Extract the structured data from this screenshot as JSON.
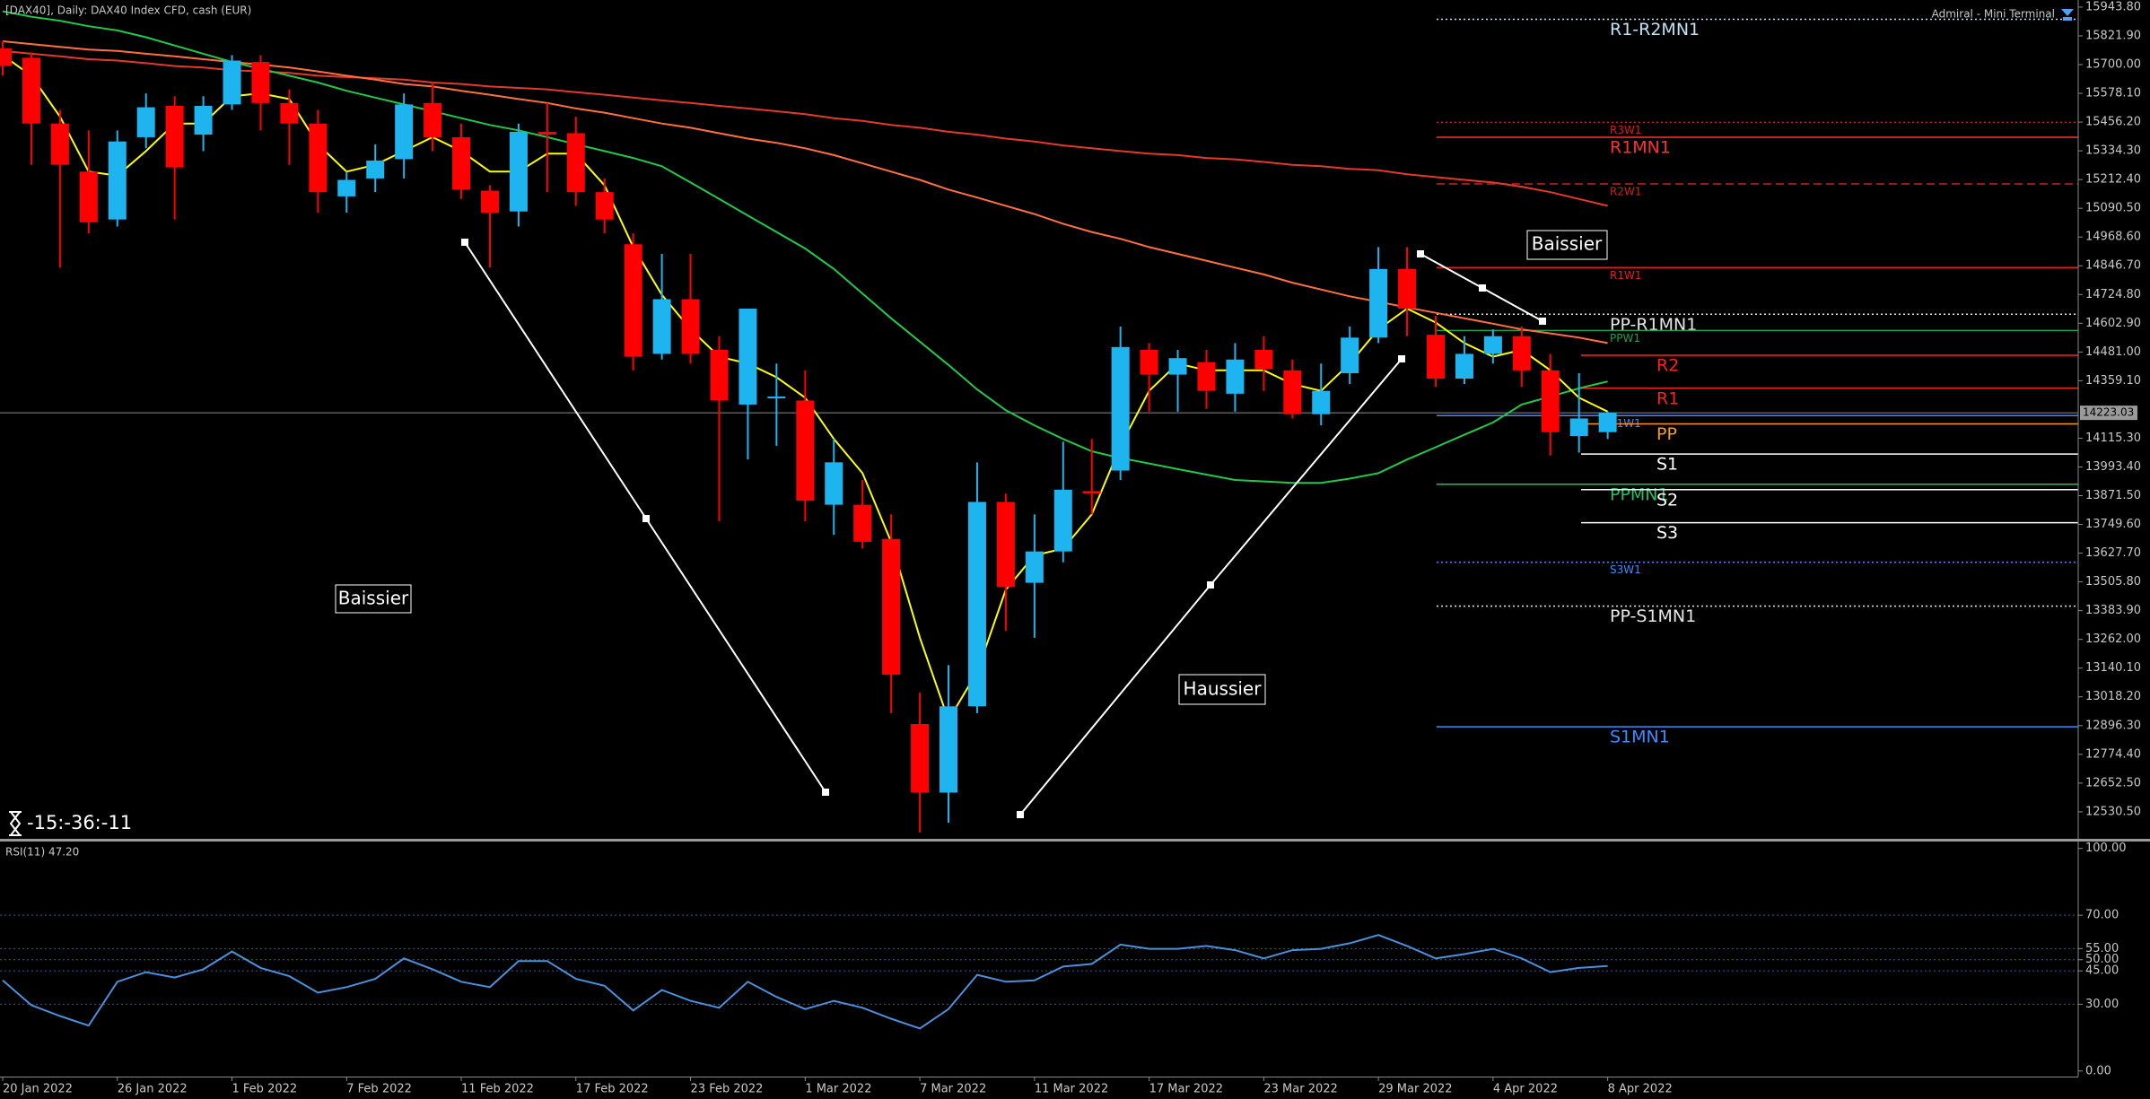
{
  "chart_data": [
    {
      "type": "candlestick",
      "title": "[DAX40], Daily:  DAX40 Index CFD, cash (EUR)",
      "categories": [
        "20 Jan 2022",
        null,
        null,
        null,
        "26 Jan 2022",
        null,
        null,
        null,
        "1 Feb 2022",
        null,
        null,
        null,
        "7 Feb 2022",
        null,
        null,
        null,
        "11 Feb 2022",
        null,
        null,
        null,
        "17 Feb 2022",
        null,
        null,
        null,
        "23 Feb 2022",
        null,
        null,
        null,
        "1 Mar 2022",
        null,
        null,
        null,
        "7 Mar 2022",
        null,
        null,
        null,
        "11 Mar 2022",
        null,
        null,
        null,
        "17 Mar 2022",
        null,
        null,
        null,
        "23 Mar 2022",
        null,
        null,
        null,
        "29 Mar 2022",
        null,
        null,
        null,
        "4 Apr 2022",
        null,
        null,
        null,
        "8 Apr 2022"
      ],
      "open": [
        15769,
        15729,
        15450,
        15246,
        15043,
        15392,
        15525,
        15403,
        15531,
        15711,
        15537,
        15450,
        15141,
        15217,
        15299,
        15537,
        15392,
        15165,
        15077,
        15415,
        15409,
        15159,
        14938,
        14473,
        14705,
        14490,
        14258,
        14287,
        14275,
        13833,
        13833,
        13688,
        12903,
        12612,
        12978,
        13845,
        13502,
        13635,
        13891,
        13978,
        14490,
        14385,
        14438,
        14304,
        14490,
        14403,
        14217,
        14391,
        14542,
        14833,
        14554,
        14368,
        14473,
        14548,
        14403,
        14124,
        14141
      ],
      "high": [
        15799,
        15752,
        15508,
        15421,
        15421,
        15578,
        15566,
        15566,
        15740,
        15740,
        15595,
        15508,
        15246,
        15362,
        15578,
        15624,
        15450,
        15188,
        15450,
        15537,
        15479,
        15217,
        14984,
        14897,
        14897,
        14548,
        14665,
        14432,
        14403,
        14112,
        13938,
        13792,
        13036,
        13153,
        14013,
        13880,
        13792,
        14101,
        14112,
        14589,
        14519,
        14490,
        14490,
        14519,
        14548,
        14449,
        14432,
        14589,
        14926,
        14926,
        14635,
        14548,
        14577,
        14589,
        14473,
        14391,
        14228
      ],
      "low": [
        15653,
        15275,
        14839,
        14984,
        15013,
        15345,
        15043,
        15333,
        15508,
        15421,
        15275,
        15072,
        15072,
        15159,
        15217,
        15333,
        15130,
        14839,
        15013,
        15159,
        15101,
        14984,
        14403,
        14449,
        14432,
        13763,
        14025,
        14083,
        13763,
        13705,
        13647,
        12949,
        12443,
        12484,
        12949,
        13298,
        13269,
        13589,
        13792,
        13938,
        14228,
        14228,
        14240,
        14228,
        14316,
        14199,
        14170,
        14345,
        14519,
        14548,
        14333,
        14345,
        14432,
        14333,
        14042,
        14054,
        14112
      ],
      "close": [
        15694,
        15450,
        15275,
        15031,
        15374,
        15519,
        15264,
        15525,
        15717,
        15537,
        15450,
        15159,
        15211,
        15293,
        15531,
        15392,
        15170,
        15072,
        15415,
        15403,
        15159,
        15043,
        14461,
        14705,
        14473,
        14275,
        14665,
        14292,
        13850,
        14013,
        13676,
        13112,
        12612,
        12978,
        13845,
        13484,
        13635,
        13897,
        13880,
        14502,
        14385,
        14455,
        14316,
        14449,
        14409,
        14217,
        14316,
        14542,
        14833,
        14665,
        14368,
        14473,
        14548,
        14403,
        14141,
        14199,
        14223
      ],
      "up_color": "#1eb4f0",
      "down_color": "#ff0000",
      "series": [
        {
          "color": "#e23a2a",
          "values": [
            15758,
            15746,
            15735,
            15723,
            15717,
            15706,
            15694,
            15688,
            15676,
            15671,
            15665,
            15653,
            15647,
            15642,
            15636,
            15624,
            15618,
            15607,
            15601,
            15595,
            15583,
            15572,
            15560,
            15548,
            15537,
            15525,
            15514,
            15502,
            15490,
            15473,
            15461,
            15444,
            15432,
            15415,
            15403,
            15386,
            15374,
            15357,
            15345,
            15333,
            15322,
            15316,
            15304,
            15298,
            15287,
            15275,
            15269,
            15258,
            15252,
            15235,
            15223,
            15211,
            15200,
            15182,
            15159,
            15130,
            15101
          ]
        },
        {
          "color": "#ff7040",
          "values": [
            15799,
            15787,
            15775,
            15764,
            15758,
            15746,
            15735,
            15723,
            15711,
            15700,
            15688,
            15671,
            15653,
            15636,
            15618,
            15607,
            15589,
            15572,
            15554,
            15537,
            15514,
            15496,
            15473,
            15450,
            15432,
            15409,
            15386,
            15368,
            15345,
            15316,
            15281,
            15246,
            15211,
            15170,
            15136,
            15101,
            15066,
            15025,
            14990,
            14961,
            14926,
            14897,
            14868,
            14839,
            14810,
            14775,
            14746,
            14717,
            14694,
            14670,
            14647,
            14624,
            14601,
            14577,
            14560,
            14542,
            14519
          ]
        },
        {
          "color": "#22c84a",
          "values": [
            15926,
            15903,
            15886,
            15863,
            15845,
            15816,
            15781,
            15746,
            15711,
            15682,
            15653,
            15624,
            15589,
            15560,
            15531,
            15502,
            15473,
            15444,
            15421,
            15392,
            15362,
            15333,
            15304,
            15269,
            15200,
            15130,
            15060,
            14990,
            14920,
            14833,
            14729,
            14624,
            14525,
            14426,
            14322,
            14234,
            14170,
            14112,
            14060,
            14031,
            14008,
            13984,
            13961,
            13938,
            13932,
            13926,
            13926,
            13944,
            13967,
            14025,
            14077,
            14130,
            14182,
            14258,
            14292,
            14327,
            14356
          ]
        },
        {
          "color": "#ffff00",
          "values": [
            15740,
            15653,
            15479,
            15246,
            15229,
            15333,
            15450,
            15450,
            15566,
            15578,
            15554,
            15362,
            15246,
            15275,
            15333,
            15392,
            15333,
            15246,
            15246,
            15322,
            15322,
            15188,
            14926,
            14723,
            14577,
            14461,
            14432,
            14374,
            14287,
            14112,
            13967,
            13676,
            13269,
            12920,
            13124,
            13473,
            13618,
            13647,
            13792,
            14083,
            14316,
            14432,
            14403,
            14403,
            14403,
            14345,
            14316,
            14432,
            14577,
            14665,
            14606,
            14519,
            14461,
            14490,
            14403,
            14287,
            14228
          ]
        }
      ],
      "ylim": [
        12416,
        15974
      ],
      "yticks": [
        {
          "value": 15943.8,
          "label": "15943.80"
        },
        {
          "value": 15821.9,
          "label": "15821.90"
        },
        {
          "value": 15700,
          "label": "15700.00"
        },
        {
          "value": 15578.1,
          "label": "15578.10"
        },
        {
          "value": 15456.2,
          "label": "15456.20"
        },
        {
          "value": 15334.3,
          "label": "15334.30"
        },
        {
          "value": 15212.4,
          "label": "15212.40"
        },
        {
          "value": 15090.5,
          "label": "15090.50"
        },
        {
          "value": 14968.6,
          "label": "14968.60"
        },
        {
          "value": 14846.7,
          "label": "14846.70"
        },
        {
          "value": 14724.8,
          "label": "14724.80"
        },
        {
          "value": 14602.9,
          "label": "14602.90"
        },
        {
          "value": 14481,
          "label": "14481.00"
        },
        {
          "value": 14359.1,
          "label": "14359.10"
        },
        {
          "value": 14115.3,
          "label": "14115.30"
        },
        {
          "value": 13993.4,
          "label": "13993.40"
        },
        {
          "value": 13871.5,
          "label": "13871.50"
        },
        {
          "value": 13749.6,
          "label": "13749.60"
        },
        {
          "value": 13627.7,
          "label": "13627.70"
        },
        {
          "value": 13505.8,
          "label": "13505.80"
        },
        {
          "value": 13383.9,
          "label": "13383.90"
        },
        {
          "value": 13262,
          "label": "13262.00"
        },
        {
          "value": 13140.1,
          "label": "13140.10"
        },
        {
          "value": 13018.2,
          "label": "13018.20"
        },
        {
          "value": 12896.3,
          "label": "12896.30"
        },
        {
          "value": 12774.4,
          "label": "12774.40"
        },
        {
          "value": 12652.5,
          "label": "12652.50"
        },
        {
          "value": 12530.5,
          "label": "12530.50"
        }
      ],
      "grid": false,
      "current_price": 14223.03,
      "levels": {
        "monthly": [
          {
            "label": "R1-R2MN1",
            "value": 15892,
            "color": "#bfe3f5",
            "style": "dotted"
          },
          {
            "label": "R1MN1",
            "value": 15392,
            "color": "#ff3030",
            "style": "solid"
          },
          {
            "label": "PP-R1MN1",
            "value": 14641,
            "color": "#e6e6e6",
            "style": "dotted"
          },
          {
            "label": "PPMN1",
            "value": 13920,
            "color": "#22c060",
            "style": "solid"
          },
          {
            "label": "PP-S1MN1",
            "value": 13403,
            "color": "#e6e6e6",
            "style": "dotted"
          },
          {
            "label": "S1MN1",
            "value": 12891,
            "color": "#3c8cff",
            "style": "solid"
          }
        ],
        "weekly": [
          {
            "label": "R3W1",
            "value": 15455,
            "color": "#d02020",
            "style": "dotted"
          },
          {
            "label": "R2W1",
            "value": 15194,
            "color": "#d02020",
            "style": "dashed"
          },
          {
            "label": "R1W1",
            "value": 14839,
            "color": "#e02020",
            "style": "solid"
          },
          {
            "label": "PPW1",
            "value": 14572,
            "color": "#20a050",
            "style": "solid"
          },
          {
            "label": "S1W1",
            "value": 14211,
            "color": "#3c8cff",
            "style": "solid"
          },
          {
            "label": "S3W1",
            "value": 13589,
            "color": "#3c8cff",
            "style": "dotted"
          }
        ],
        "daily": [
          {
            "label": "R2",
            "value": 14467,
            "color": "#ff2020",
            "style": "solid"
          },
          {
            "label": "R1",
            "value": 14327,
            "color": "#ff2020",
            "style": "solid"
          },
          {
            "label": "PP",
            "value": 14176,
            "color": "#ff9a20",
            "style": "solid"
          },
          {
            "label": "S1",
            "value": 14048,
            "color": "#ffffff",
            "style": "solid"
          },
          {
            "label": "S2",
            "value": 13897,
            "color": "#ffffff",
            "style": "solid"
          },
          {
            "label": "S3",
            "value": 13757,
            "color": "#ffffff",
            "style": "solid"
          }
        ]
      },
      "annotations": [
        "Baissier",
        "Baissier",
        "Haussier"
      ]
    },
    {
      "type": "line",
      "title": "RSI(11) 47.20",
      "color": "#4a90dc",
      "values": [
        40.7,
        29.6,
        24.7,
        20.4,
        40.1,
        44.4,
        42.0,
        45.7,
        53.7,
        46.3,
        42.6,
        35.2,
        37.7,
        41.4,
        50.6,
        45.7,
        40.1,
        37.7,
        49.4,
        49.4,
        41.4,
        38.3,
        27.2,
        36.4,
        31.5,
        28.4,
        40.1,
        33.3,
        27.8,
        31.5,
        28.4,
        23.5,
        19.1,
        27.8,
        43.2,
        40.1,
        40.7,
        46.9,
        48.1,
        56.8,
        54.9,
        54.9,
        56.2,
        54.3,
        50.6,
        54.3,
        54.9,
        57.4,
        61.1,
        56.2,
        50.6,
        52.5,
        54.9,
        50.6,
        44.4,
        46.3,
        47.2
      ],
      "ylim": [
        -2.5,
        103.1
      ],
      "yticks": [
        {
          "value": 100,
          "label": "100.00"
        },
        {
          "value": 70,
          "label": "70.00"
        },
        {
          "value": 55,
          "label": "55.00"
        },
        {
          "value": 50,
          "label": "50.00"
        },
        {
          "value": 45,
          "label": "45.00"
        },
        {
          "value": 30,
          "label": "30.00"
        },
        {
          "value": 0,
          "label": "0.00"
        }
      ],
      "grid": true
    }
  ],
  "terminal": {
    "panel": "Admiral - Mini Terminal",
    "countdown": "-15:-36:-11"
  }
}
